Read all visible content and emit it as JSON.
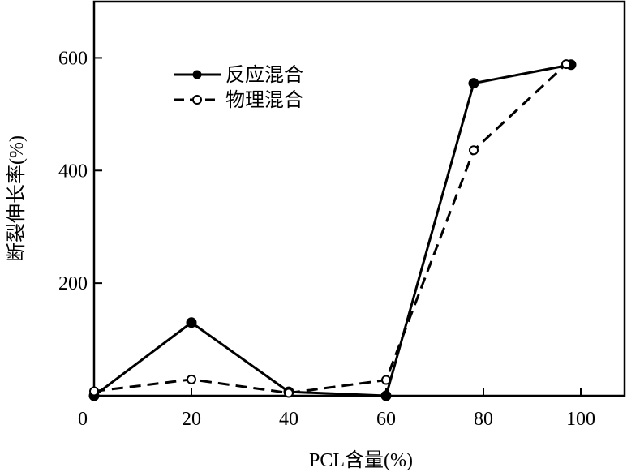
{
  "chart_data": {
    "type": "line",
    "xlabel": "PCL含量(%)",
    "ylabel": "断裂伸长率(%)",
    "xlim": [
      0,
      109
    ],
    "ylim": [
      0,
      700
    ],
    "xticks": [
      20,
      40,
      60,
      80,
      100
    ],
    "yticks": [
      200,
      400,
      600
    ],
    "origin_label": "0",
    "grid": false,
    "legend_placement": "top-left",
    "series": [
      {
        "name": "反应混合",
        "style": "solid",
        "marker": "filled-circle",
        "x": [
          0,
          20,
          40,
          60,
          78,
          98
        ],
        "y": [
          0,
          130,
          7,
          0,
          555,
          588
        ]
      },
      {
        "name": "物理混合",
        "style": "dashed",
        "marker": "open-circle",
        "x": [
          0,
          20,
          40,
          60,
          78,
          97
        ],
        "y": [
          8,
          29,
          5,
          28,
          436,
          589
        ]
      }
    ]
  }
}
